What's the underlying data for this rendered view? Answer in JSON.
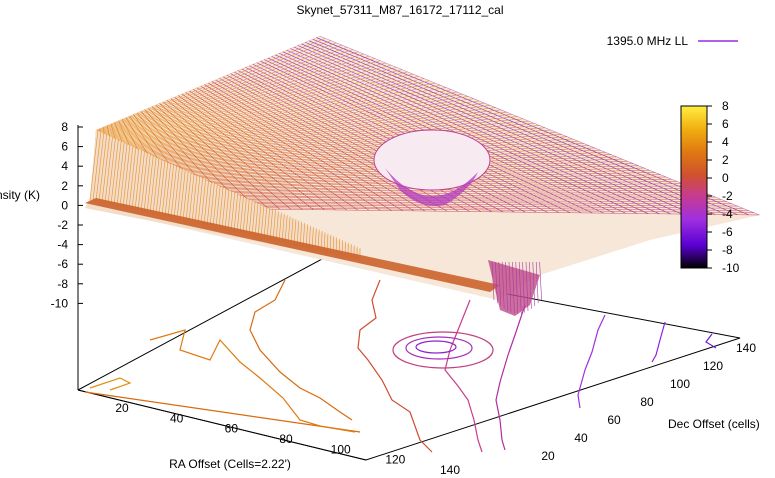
{
  "chart_data": {
    "type": "surface",
    "title": "Skynet_57311_M87_16172_17112_cal",
    "legend": {
      "label": "1395.0 MHz LL",
      "placement": "top-right",
      "color": "#9b28e6"
    },
    "zlabel": "Intensity (K)",
    "xlabel": "RA Offset (Cells=2.22')",
    "ylabel": "Dec Offset (cells)",
    "zlim": [
      -10,
      8
    ],
    "z_ticks": [
      "8",
      "6",
      "4",
      "2",
      "0",
      "-2",
      "-4",
      "-6",
      "-8",
      "-10"
    ],
    "x_ticks": [
      "20",
      "40",
      "60",
      "80",
      "100",
      "120",
      "140"
    ],
    "y_ticks": [
      "20",
      "40",
      "60",
      "80",
      "100",
      "120",
      "140"
    ],
    "colorbar": {
      "ticks": [
        "8",
        "6",
        "4",
        "2",
        "0",
        "-2",
        "-4",
        "-6",
        "-8",
        "-10"
      ],
      "range": [
        -10,
        8
      ],
      "palette": [
        "#000000",
        "#5a00d2",
        "#a030e0",
        "#c83c8c",
        "#d05030",
        "#e07a10",
        "#f0b010",
        "#ffee40"
      ]
    },
    "contours": true,
    "surface": {
      "peak_value": 8,
      "trough_value": -10,
      "left_edge_value": 0,
      "right_edge_value": -8
    }
  }
}
